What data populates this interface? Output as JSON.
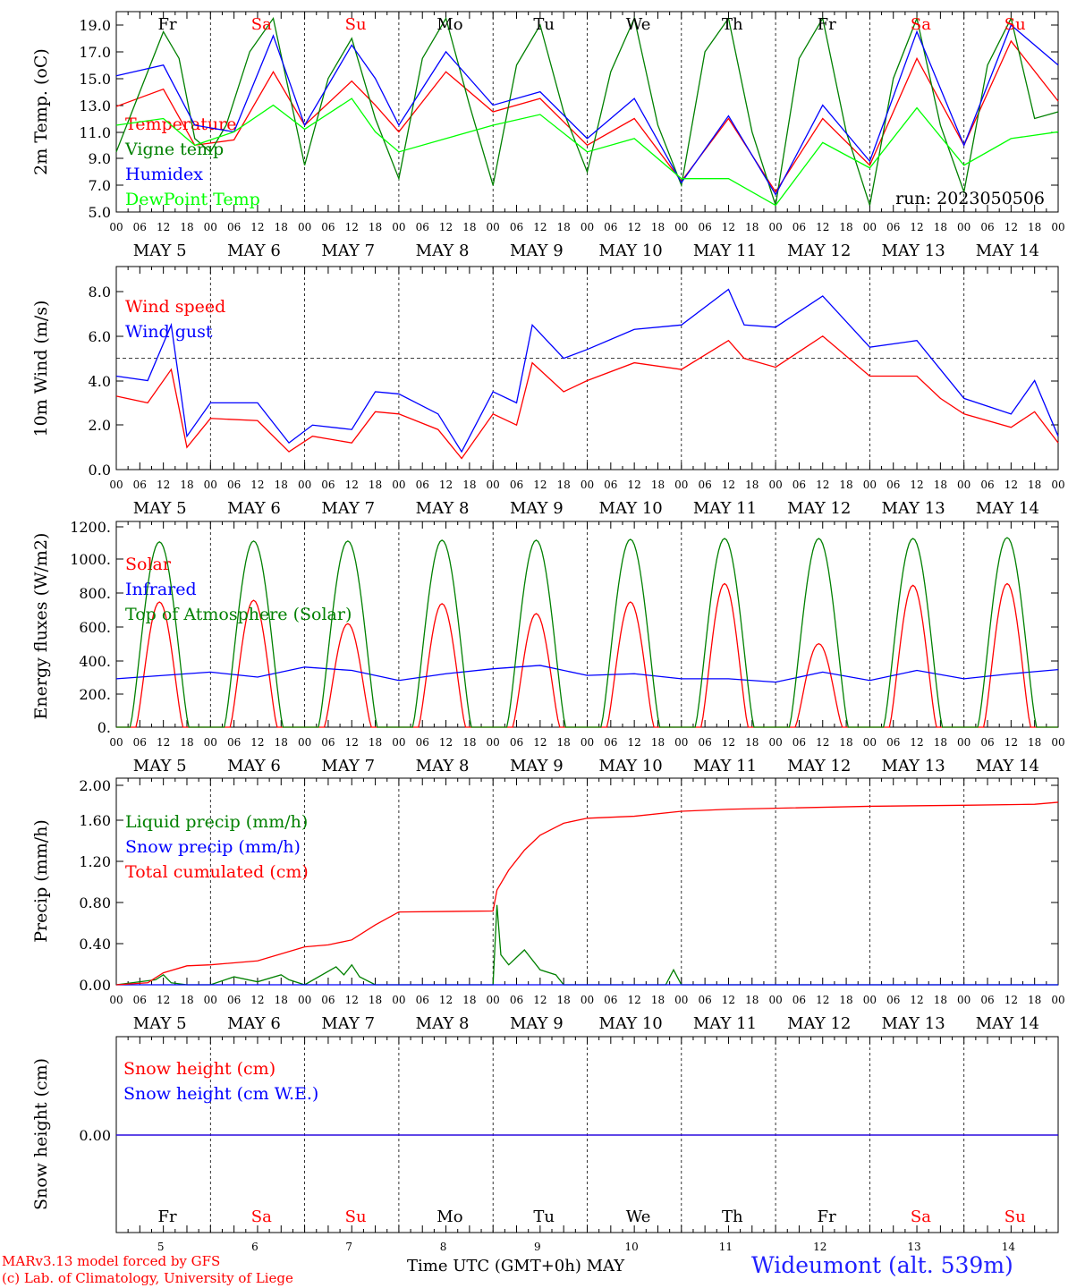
{
  "days": [
    "5",
    "6",
    "7",
    "8",
    "9",
    "10",
    "11",
    "12",
    "13",
    "14"
  ],
  "month": "MAY",
  "hours": [
    "00",
    "06",
    "12",
    "18"
  ],
  "weekdays": [
    {
      "label": "Fr",
      "color": "#000000"
    },
    {
      "label": "Sa",
      "color": "#ff0000"
    },
    {
      "label": "Su",
      "color": "#ff0000"
    },
    {
      "label": "Mo",
      "color": "#000000"
    },
    {
      "label": "Tu",
      "color": "#000000"
    },
    {
      "label": "We",
      "color": "#000000"
    },
    {
      "label": "Th",
      "color": "#000000"
    },
    {
      "label": "Fr",
      "color": "#000000"
    },
    {
      "label": "Sa",
      "color": "#ff0000"
    },
    {
      "label": "Su",
      "color": "#ff0000"
    }
  ],
  "footer": {
    "model": "MARv3.13 model forced by GFS",
    "credit": "(c) Lab. of Climatology, University of Liege",
    "xlabel": "Time UTC (GMT+0h) MAY",
    "station": "Wideumont (alt. 539m)"
  },
  "chart_data": [
    {
      "type": "line",
      "ylabel": "2m Temp. (oC)",
      "ylim": [
        5.0,
        20.0
      ],
      "yticks": [
        "5.0",
        "7.0",
        "9.0",
        "11.0",
        "13.0",
        "15.0",
        "17.0",
        "19.0"
      ],
      "annotation": "run: 2023050506",
      "x_unit": "hours since May 5 00 UTC",
      "series": [
        {
          "name": "Temperature",
          "color": "#ff0000",
          "x": [
            0,
            12,
            20,
            30,
            40,
            48,
            60,
            66,
            72,
            84,
            96,
            108,
            120,
            132,
            144,
            156,
            168,
            180,
            192,
            204,
            216,
            228,
            240
          ],
          "y": [
            12.9,
            14.2,
            10.0,
            10.4,
            15.5,
            11.5,
            14.8,
            13.0,
            11.0,
            15.5,
            12.5,
            13.5,
            10.0,
            12.0,
            7.3,
            12.0,
            6.5,
            12.0,
            8.5,
            16.5,
            10.0,
            17.8,
            13.3
          ]
        },
        {
          "name": "Vigne temp",
          "color": "#008000",
          "x": [
            0,
            6,
            12,
            16,
            20,
            24,
            28,
            34,
            40,
            44,
            48,
            54,
            60,
            66,
            72,
            78,
            84,
            90,
            96,
            102,
            108,
            114,
            120,
            126,
            132,
            138,
            144,
            150,
            156,
            162,
            168,
            174,
            180,
            186,
            192,
            198,
            204,
            210,
            216,
            222,
            228,
            234,
            240
          ],
          "y": [
            9.5,
            14.0,
            18.5,
            16.5,
            10.5,
            9.5,
            11.5,
            17.0,
            19.5,
            14.0,
            8.5,
            15.0,
            18.0,
            12.0,
            7.5,
            16.5,
            19.5,
            13.0,
            7.0,
            16.0,
            19.0,
            12.5,
            8.0,
            15.5,
            19.5,
            11.5,
            7.0,
            17.0,
            19.5,
            11.0,
            5.5,
            16.5,
            19.5,
            11.0,
            5.5,
            15.0,
            19.5,
            11.5,
            6.5,
            16.0,
            19.5,
            12.0,
            12.5
          ]
        },
        {
          "name": "Humidex",
          "color": "#0000ff",
          "x": [
            0,
            12,
            20,
            30,
            40,
            48,
            60,
            66,
            72,
            84,
            96,
            108,
            120,
            132,
            144,
            156,
            168,
            180,
            192,
            204,
            216,
            228,
            240
          ],
          "y": [
            15.2,
            16.0,
            11.5,
            11.0,
            18.2,
            11.5,
            17.5,
            15.0,
            11.5,
            17.0,
            13.0,
            14.0,
            10.5,
            13.5,
            7.2,
            12.2,
            6.3,
            13.0,
            8.8,
            18.5,
            10.0,
            19.0,
            16.0
          ]
        },
        {
          "name": "DewPoint Temp",
          "color": "#00ff00",
          "x": [
            0,
            12,
            20,
            30,
            40,
            48,
            60,
            66,
            72,
            84,
            96,
            108,
            120,
            132,
            144,
            156,
            168,
            180,
            192,
            204,
            216,
            228,
            240
          ],
          "y": [
            11.5,
            12.0,
            10.0,
            11.0,
            13.0,
            11.2,
            13.5,
            11.0,
            9.5,
            10.5,
            11.5,
            12.3,
            9.5,
            10.5,
            7.5,
            7.5,
            5.5,
            10.2,
            8.3,
            12.8,
            8.5,
            10.5,
            11.0
          ]
        }
      ]
    },
    {
      "type": "line",
      "ylabel": "10m Wind (m/s)",
      "ylim": [
        0.0,
        8.9
      ],
      "yticks": [
        "0.0",
        "2.0",
        "4.0",
        "6.0",
        "8.0"
      ],
      "reference_line": 5.0,
      "series": [
        {
          "name": "Wind speed",
          "color": "#ff0000",
          "x": [
            0,
            8,
            14,
            18,
            24,
            36,
            44,
            50,
            60,
            66,
            72,
            82,
            88,
            96,
            102,
            106,
            114,
            120,
            132,
            144,
            156,
            160,
            168,
            180,
            192,
            204,
            210,
            216,
            228,
            234,
            240
          ],
          "y": [
            3.3,
            3.0,
            4.5,
            1.0,
            2.3,
            2.2,
            0.8,
            1.5,
            1.2,
            2.6,
            2.5,
            1.8,
            0.5,
            2.5,
            2.0,
            4.8,
            3.5,
            4.0,
            4.8,
            4.5,
            5.8,
            5.0,
            4.6,
            6.0,
            4.2,
            4.2,
            3.2,
            2.5,
            1.9,
            2.6,
            1.2
          ]
        },
        {
          "name": "Wind gust",
          "color": "#0000ff",
          "x": [
            0,
            8,
            14,
            18,
            24,
            36,
            44,
            50,
            60,
            66,
            72,
            82,
            88,
            96,
            102,
            106,
            114,
            120,
            132,
            144,
            156,
            160,
            168,
            180,
            192,
            204,
            210,
            216,
            228,
            234,
            240
          ],
          "y": [
            4.2,
            4.0,
            6.5,
            1.5,
            3.0,
            3.0,
            1.2,
            2.0,
            1.8,
            3.5,
            3.4,
            2.5,
            0.8,
            3.5,
            3.0,
            6.5,
            5.0,
            5.4,
            6.3,
            6.5,
            8.1,
            6.5,
            6.4,
            7.8,
            5.5,
            5.8,
            4.5,
            3.2,
            2.5,
            4.0,
            1.5
          ]
        }
      ]
    },
    {
      "type": "line",
      "ylabel": "Energy fluxes (W/m2)",
      "ylim": [
        0,
        1200
      ],
      "yticks": [
        "0.",
        "200.",
        "400.",
        "600.",
        "800.",
        "1000.",
        "1200."
      ],
      "series": [
        {
          "name": "Solar",
          "color": "#ff0000",
          "daily_peaks": [
            750,
            760,
            620,
            740,
            680,
            750,
            860,
            500,
            850,
            860
          ]
        },
        {
          "name": "Infrared",
          "color": "#0000ff",
          "x": [
            0,
            24,
            36,
            48,
            60,
            72,
            84,
            96,
            108,
            120,
            132,
            144,
            156,
            168,
            180,
            192,
            204,
            216,
            228,
            240
          ],
          "y": [
            290,
            330,
            300,
            360,
            340,
            280,
            320,
            350,
            370,
            310,
            320,
            290,
            290,
            270,
            330,
            280,
            340,
            290,
            320,
            345
          ]
        },
        {
          "name": "Top of Atmosphere (Solar)",
          "color": "#008000",
          "daily_peaks": [
            1110,
            1115,
            1115,
            1120,
            1120,
            1125,
            1130,
            1130,
            1130,
            1135
          ]
        }
      ]
    },
    {
      "type": "line",
      "ylabel": "Precip (mm/h)",
      "ylim": [
        0.0,
        2.0
      ],
      "yticks": [
        "0.00",
        "0.40",
        "0.80",
        "1.20",
        "1.60",
        "2.00"
      ],
      "series": [
        {
          "name": "Liquid precip (mm/h)",
          "color": "#008000",
          "x": [
            0,
            10,
            12,
            14,
            18,
            24,
            30,
            36,
            42,
            44,
            48,
            56,
            58,
            60,
            62,
            66,
            70,
            72,
            96,
            97,
            98,
            100,
            104,
            108,
            112,
            114,
            120,
            140,
            142,
            144,
            240
          ],
          "y": [
            0,
            0.05,
            0.1,
            0.02,
            0,
            0,
            0.08,
            0.03,
            0.1,
            0.05,
            0,
            0.18,
            0.1,
            0.2,
            0.08,
            0,
            0,
            0,
            0,
            0.8,
            0.3,
            0.2,
            0.35,
            0.15,
            0.1,
            0,
            0,
            0,
            0.15,
            0,
            0
          ]
        },
        {
          "name": "Snow precip (mm/h)",
          "color": "#0000ff",
          "x": [
            0,
            240
          ],
          "y": [
            0,
            0
          ]
        },
        {
          "name": "Total cumulated (cm)",
          "color": "#ff0000",
          "x": [
            0,
            8,
            12,
            18,
            24,
            36,
            48,
            54,
            60,
            66,
            72,
            96,
            97,
            100,
            104,
            108,
            112,
            114,
            120,
            132,
            144,
            156,
            168,
            192,
            216,
            234,
            240
          ],
          "y": [
            0,
            0.02,
            0.12,
            0.19,
            0.2,
            0.24,
            0.38,
            0.4,
            0.45,
            0.6,
            0.73,
            0.74,
            0.95,
            1.15,
            1.35,
            1.5,
            1.58,
            1.62,
            1.67,
            1.69,
            1.74,
            1.76,
            1.77,
            1.79,
            1.8,
            1.81,
            1.83
          ]
        }
      ]
    },
    {
      "type": "line",
      "ylabel": "Snow height (cm)",
      "yticks": [
        "0.00"
      ],
      "series": [
        {
          "name": "Snow height (cm)",
          "color": "#ff0000",
          "x": [
            0,
            240
          ],
          "y": [
            0,
            0
          ]
        },
        {
          "name": "Snow height (cm W.E.)",
          "color": "#0000ff",
          "x": [
            0,
            240
          ],
          "y": [
            0,
            0
          ]
        }
      ]
    }
  ]
}
